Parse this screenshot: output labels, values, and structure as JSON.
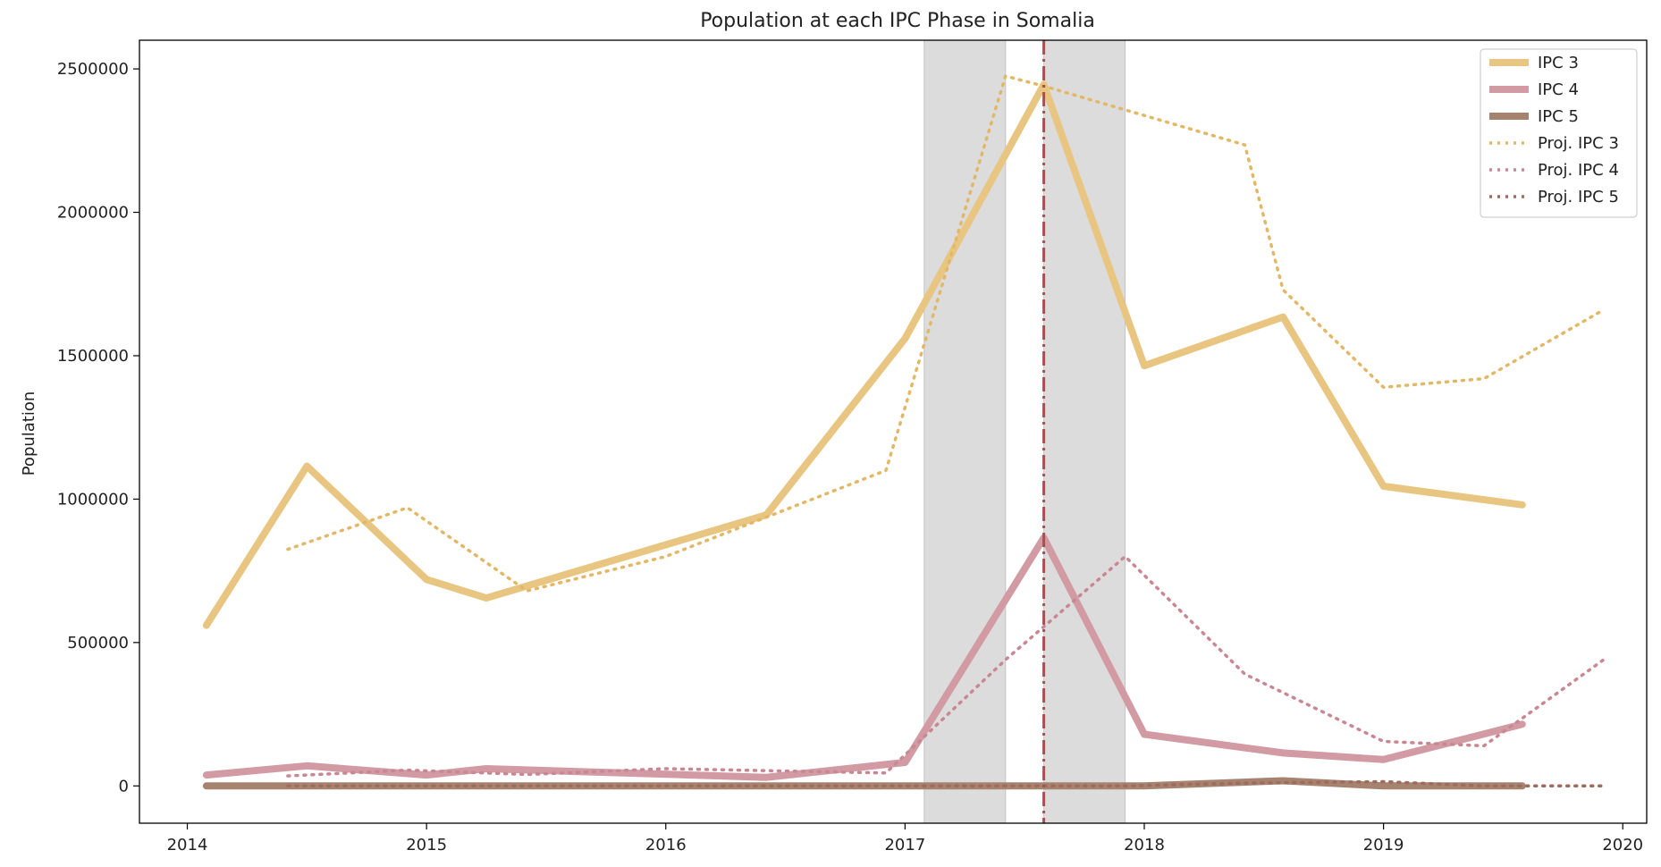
{
  "chart_data": {
    "type": "line",
    "title": "Population at each IPC Phase in Somalia",
    "xlabel": "",
    "ylabel": "Population",
    "xlim": [
      2013.8,
      2020.1
    ],
    "ylim": [
      -130000,
      2600000
    ],
    "x_ticks": [
      2014,
      2015,
      2016,
      2017,
      2018,
      2019,
      2020
    ],
    "y_ticks": [
      0,
      500000,
      1000000,
      1500000,
      2000000,
      2500000
    ],
    "legend_position": "top-right",
    "shaded_regions": [
      {
        "start": 2017.08,
        "end": 2017.42
      },
      {
        "start": 2017.58,
        "end": 2017.92
      }
    ],
    "vertical_line": {
      "x": 2017.58,
      "style": "dash-dot",
      "color": "#a8504e"
    },
    "colors": {
      "ipc3": "#e8c682",
      "ipc4": "#d29ba3",
      "ipc5": "#a5836f",
      "proj_ipc3": "#e2b866",
      "proj_ipc4": "#c98793",
      "proj_ipc5": "#a06b5f",
      "shade": "#dcdcdc"
    },
    "series": [
      {
        "name": "IPC 3",
        "style": "solid",
        "color_key": "ipc3",
        "x": [
          2014.08,
          2014.5,
          2015.0,
          2015.25,
          2016.42,
          2017.0,
          2017.58,
          2018.0,
          2018.58,
          2019.0,
          2019.58
        ],
        "y": [
          560000,
          1115000,
          720000,
          655000,
          945000,
          1560000,
          2445000,
          1465000,
          1635000,
          1045000,
          980000
        ]
      },
      {
        "name": "IPC 4",
        "style": "solid",
        "color_key": "ipc4",
        "x": [
          2014.08,
          2014.5,
          2015.0,
          2015.25,
          2016.42,
          2017.0,
          2017.58,
          2018.0,
          2018.58,
          2019.0,
          2019.58
        ],
        "y": [
          38000,
          70000,
          38000,
          60000,
          30000,
          82000,
          865000,
          180000,
          115000,
          92000,
          215000
        ]
      },
      {
        "name": "IPC 5",
        "style": "solid",
        "color_key": "ipc5",
        "x": [
          2014.08,
          2014.5,
          2015.0,
          2015.25,
          2016.42,
          2017.0,
          2017.58,
          2018.0,
          2018.58,
          2019.0,
          2019.58
        ],
        "y": [
          0,
          0,
          0,
          0,
          0,
          0,
          0,
          0,
          18000,
          0,
          0
        ]
      },
      {
        "name": "Proj. IPC 3",
        "style": "dotted",
        "color_key": "proj_ipc3",
        "x": [
          2014.42,
          2014.92,
          2015.42,
          2016.0,
          2016.92,
          2017.42,
          2017.58,
          2018.42,
          2018.58,
          2019.0,
          2019.42,
          2019.92
        ],
        "y": [
          825000,
          970000,
          680000,
          800000,
          1100000,
          2475000,
          2440000,
          2235000,
          1730000,
          1390000,
          1420000,
          1660000
        ]
      },
      {
        "name": "Proj. IPC 4",
        "style": "dotted",
        "color_key": "proj_ipc4",
        "x": [
          2014.42,
          2014.92,
          2015.42,
          2016.0,
          2016.92,
          2017.42,
          2017.92,
          2018.42,
          2019.0,
          2019.42,
          2019.92
        ],
        "y": [
          35000,
          55000,
          40000,
          60000,
          45000,
          440000,
          800000,
          390000,
          155000,
          140000,
          440000
        ]
      },
      {
        "name": "Proj. IPC 5",
        "style": "dotted",
        "color_key": "proj_ipc5",
        "x": [
          2014.42,
          2014.92,
          2015.42,
          2016.0,
          2016.92,
          2017.42,
          2017.92,
          2018.42,
          2019.0,
          2019.42,
          2019.92
        ],
        "y": [
          0,
          0,
          0,
          0,
          0,
          0,
          0,
          10000,
          15000,
          0,
          0
        ]
      }
    ]
  }
}
